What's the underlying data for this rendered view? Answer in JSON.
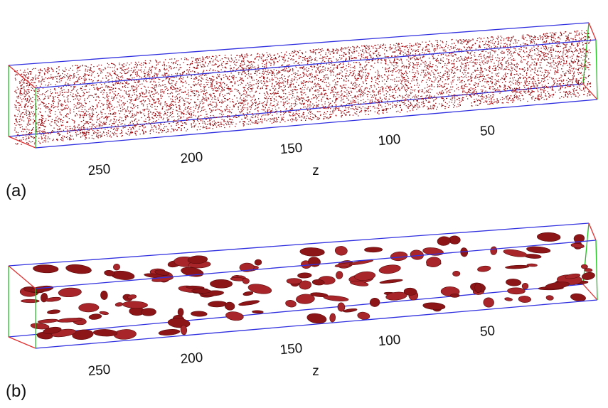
{
  "panels": [
    {
      "label": "(a)",
      "axis_label": "z",
      "ticks": [
        "250",
        "200",
        "150",
        "100",
        "50"
      ]
    },
    {
      "label": "(b)",
      "axis_label": "z",
      "ticks": [
        "250",
        "200",
        "150",
        "100",
        "50"
      ]
    }
  ]
}
